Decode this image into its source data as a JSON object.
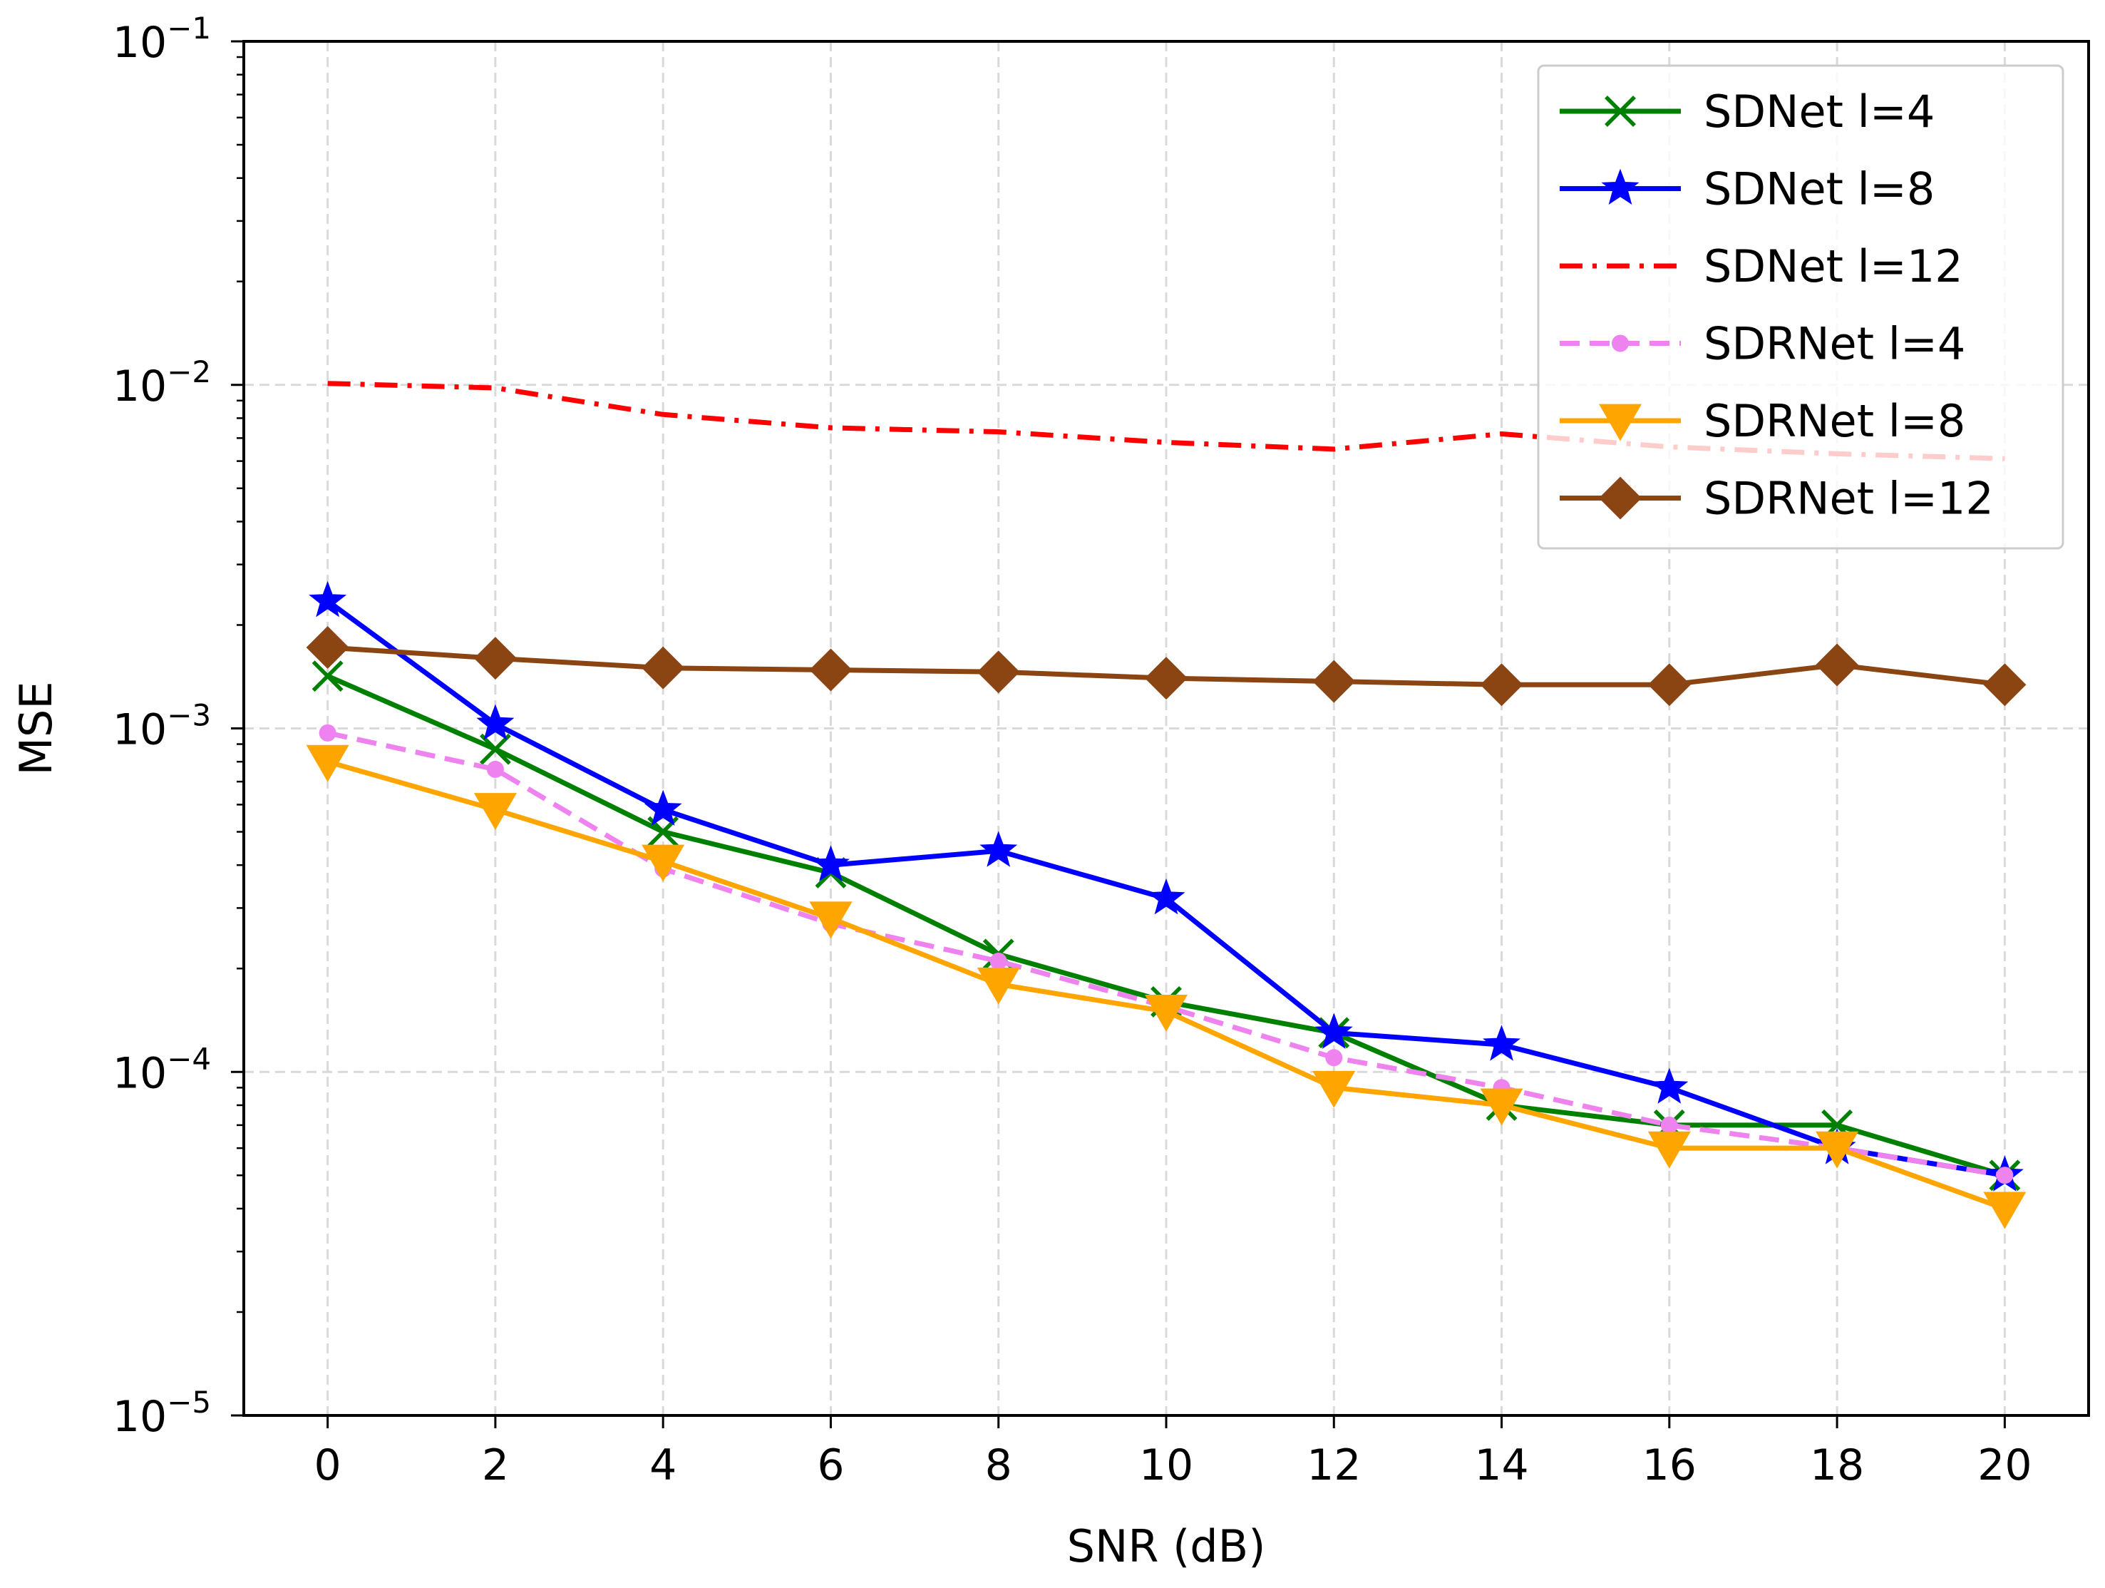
{
  "chart_data": {
    "type": "line",
    "title": "",
    "xlabel": "SNR (dB)",
    "ylabel": "MSE",
    "yscale": "log",
    "xlim": [
      -1,
      21
    ],
    "ylim": [
      1e-05,
      0.1
    ],
    "grid": true,
    "legend_position": "top-right",
    "x": [
      0,
      2,
      4,
      6,
      8,
      10,
      12,
      14,
      16,
      18,
      20
    ],
    "x_ticks": [
      "0",
      "2",
      "4",
      "6",
      "8",
      "10",
      "12",
      "14",
      "16",
      "18",
      "20"
    ],
    "y_ticks": [
      {
        "value": 1e-05,
        "base": "10",
        "exp": "−5"
      },
      {
        "value": 0.0001,
        "base": "10",
        "exp": "−4"
      },
      {
        "value": 0.001,
        "base": "10",
        "exp": "−3"
      },
      {
        "value": 0.01,
        "base": "10",
        "exp": "−2"
      },
      {
        "value": 0.1,
        "base": "10",
        "exp": "−1"
      }
    ],
    "series": [
      {
        "name": "SDNet l=4",
        "color": "#008000",
        "line": "solid",
        "marker": "x",
        "values": [
          0.00142,
          0.00087,
          0.0005,
          0.00038,
          0.00022,
          0.00016,
          0.00013,
          8e-05,
          7e-05,
          7e-05,
          5e-05
        ]
      },
      {
        "name": "SDNet l=8",
        "color": "#0000ff",
        "line": "solid",
        "marker": "star",
        "values": [
          0.00235,
          0.00103,
          0.00058,
          0.0004,
          0.00044,
          0.00032,
          0.00013,
          0.00012,
          9e-05,
          6e-05,
          5e-05
        ]
      },
      {
        "name": "SDNet l=12",
        "color": "#ff0000",
        "line": "dashdot",
        "marker": "none",
        "values": [
          0.0101,
          0.0098,
          0.0082,
          0.0075,
          0.0073,
          0.0068,
          0.0065,
          0.0072,
          0.0066,
          0.0063,
          0.0061
        ]
      },
      {
        "name": "SDRNet l=4",
        "color": "#ee82ee",
        "line": "dashed",
        "marker": "circle",
        "values": [
          0.00097,
          0.00076,
          0.00039,
          0.00027,
          0.00021,
          0.000155,
          0.00011,
          9e-05,
          7e-05,
          6e-05,
          5e-05
        ]
      },
      {
        "name": "SDRNet l=8",
        "color": "#ffa500",
        "line": "solid",
        "marker": "triangle-down",
        "values": [
          0.0008,
          0.00058,
          0.00041,
          0.00028,
          0.00018,
          0.00015,
          9e-05,
          8e-05,
          6e-05,
          6e-05,
          4e-05
        ]
      },
      {
        "name": "SDRNet l=12",
        "color": "#8b4513",
        "line": "solid",
        "marker": "diamond",
        "values": [
          0.00172,
          0.0016,
          0.0015,
          0.00148,
          0.00146,
          0.0014,
          0.00137,
          0.00134,
          0.00134,
          0.00153,
          0.00134
        ]
      }
    ]
  }
}
